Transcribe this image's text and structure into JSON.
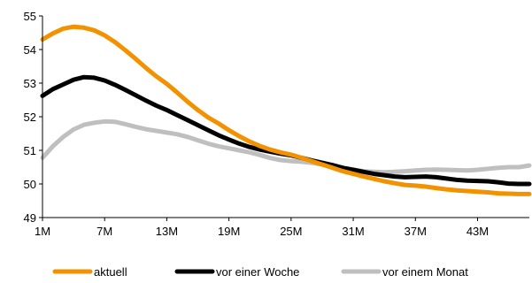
{
  "chart_data": {
    "type": "line",
    "title": "",
    "xlabel": "",
    "ylabel": "",
    "x_ticks": [
      "1M",
      "7M",
      "13M",
      "19M",
      "25M",
      "31M",
      "37M",
      "43M"
    ],
    "ylim": [
      49,
      55
    ],
    "y_ticks": [
      "49",
      "50",
      "51",
      "52",
      "53",
      "54",
      "55"
    ],
    "xlim": [
      1,
      48
    ],
    "grid": false,
    "legend_position": "bottom",
    "x": [
      1,
      2,
      3,
      4,
      5,
      6,
      7,
      8,
      9,
      10,
      11,
      12,
      13,
      14,
      15,
      16,
      17,
      18,
      19,
      20,
      21,
      22,
      23,
      24,
      25,
      26,
      27,
      28,
      29,
      30,
      31,
      32,
      33,
      34,
      35,
      36,
      37,
      38,
      39,
      40,
      41,
      42,
      43,
      44,
      45,
      46,
      47,
      48
    ],
    "series": [
      {
        "name": "aktuell",
        "color": "#F39200",
        "values": [
          54.3,
          54.48,
          54.62,
          54.68,
          54.65,
          54.57,
          54.42,
          54.22,
          53.98,
          53.72,
          53.45,
          53.2,
          52.98,
          52.72,
          52.45,
          52.2,
          51.98,
          51.8,
          51.6,
          51.42,
          51.26,
          51.13,
          51.02,
          50.94,
          50.87,
          50.78,
          50.68,
          50.58,
          50.48,
          50.38,
          50.3,
          50.22,
          50.15,
          50.08,
          50.02,
          49.97,
          49.95,
          49.92,
          49.88,
          49.84,
          49.81,
          49.79,
          49.77,
          49.75,
          49.72,
          49.71,
          49.7,
          49.7
        ]
      },
      {
        "name": "vor einer Woche",
        "color": "#000000",
        "values": [
          52.62,
          52.82,
          52.96,
          53.1,
          53.18,
          53.16,
          53.08,
          52.95,
          52.8,
          52.64,
          52.48,
          52.33,
          52.2,
          52.05,
          51.9,
          51.75,
          51.6,
          51.45,
          51.32,
          51.2,
          51.1,
          51.02,
          50.96,
          50.9,
          50.85,
          50.78,
          50.7,
          50.63,
          50.56,
          50.48,
          50.42,
          50.36,
          50.3,
          50.26,
          50.22,
          50.2,
          50.21,
          50.22,
          50.2,
          50.16,
          50.12,
          50.1,
          50.09,
          50.08,
          50.05,
          50.01,
          50.0,
          50.0
        ]
      },
      {
        "name": "vor einem Monat",
        "color": "#BFBFBF",
        "values": [
          50.78,
          51.12,
          51.4,
          51.62,
          51.76,
          51.82,
          51.86,
          51.85,
          51.78,
          51.7,
          51.63,
          51.58,
          51.53,
          51.48,
          51.4,
          51.3,
          51.2,
          51.12,
          51.06,
          51.0,
          50.94,
          50.86,
          50.77,
          50.71,
          50.68,
          50.66,
          50.63,
          50.58,
          50.52,
          50.47,
          50.42,
          50.38,
          50.36,
          50.35,
          50.36,
          50.38,
          50.4,
          50.42,
          50.43,
          50.42,
          50.41,
          50.4,
          50.42,
          50.45,
          50.48,
          50.5,
          50.5,
          50.55
        ]
      }
    ]
  }
}
